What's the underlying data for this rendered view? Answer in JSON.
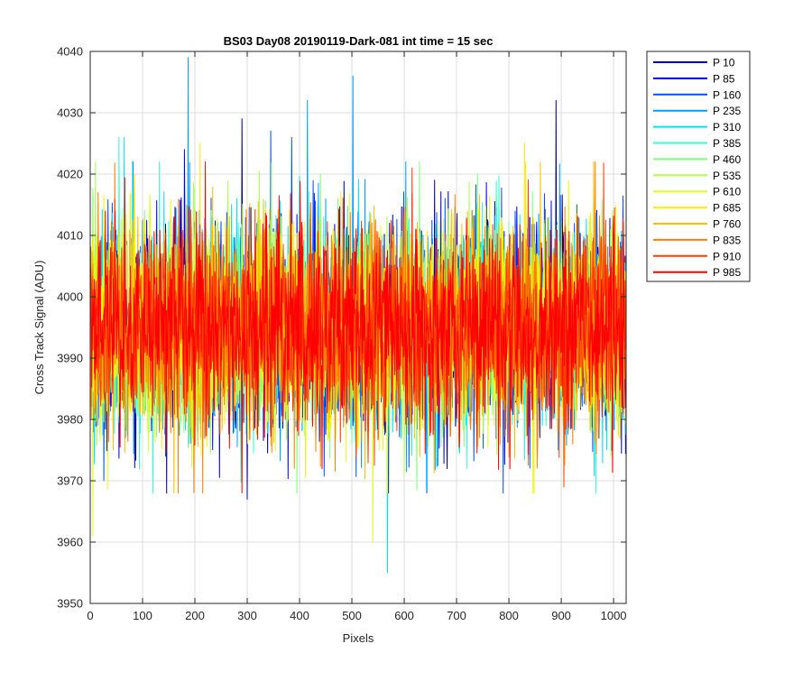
{
  "chart_data": {
    "type": "line",
    "title": "BS03 Day08 20190119-Dark-081 int time = 15 sec",
    "xlabel": "Pixels",
    "ylabel": "Cross Track Signal (ADU)",
    "xlim": [
      0,
      1024
    ],
    "ylim": [
      3950,
      4040
    ],
    "xticks": [
      0,
      100,
      200,
      300,
      400,
      500,
      600,
      700,
      800,
      900,
      1000
    ],
    "yticks": [
      3950,
      3960,
      3970,
      3980,
      3990,
      4000,
      4010,
      4020,
      4030,
      4040
    ],
    "grid": true,
    "legend_position": "outside-top-right",
    "signal_summary": {
      "typical_mean_adu": 3995,
      "typical_range_adu": [
        3978,
        4012
      ]
    },
    "series": [
      {
        "name": "P 10",
        "color": "#00008f",
        "spikes": [
          {
            "x": 290,
            "y": 4029
          },
          {
            "x": 570,
            "y": 3968
          },
          {
            "x": 890,
            "y": 4032
          }
        ]
      },
      {
        "name": "P 85",
        "color": "#0000ef",
        "spikes": [
          {
            "x": 180,
            "y": 4024
          },
          {
            "x": 300,
            "y": 3967
          }
        ]
      },
      {
        "name": "P 160",
        "color": "#0050ff",
        "spikes": [
          {
            "x": 345,
            "y": 4027
          },
          {
            "x": 385,
            "y": 4026
          }
        ]
      },
      {
        "name": "P 235",
        "color": "#009fff",
        "spikes": [
          {
            "x": 187,
            "y": 4039
          },
          {
            "x": 502,
            "y": 4036
          },
          {
            "x": 415,
            "y": 4032
          }
        ]
      },
      {
        "name": "P 310",
        "color": "#00dfff",
        "spikes": [
          {
            "x": 568,
            "y": 3955
          },
          {
            "x": 65,
            "y": 4026
          }
        ]
      },
      {
        "name": "P 385",
        "color": "#2fffcf",
        "spikes": [
          {
            "x": 55,
            "y": 4026
          },
          {
            "x": 720,
            "y": 3972
          }
        ]
      },
      {
        "name": "P 460",
        "color": "#7fff7f",
        "spikes": [
          {
            "x": 440,
            "y": 4020
          }
        ]
      },
      {
        "name": "P 535",
        "color": "#afff4f",
        "spikes": [
          {
            "x": 10,
            "y": 4022
          },
          {
            "x": 600,
            "y": 3971
          }
        ]
      },
      {
        "name": "P 610",
        "color": "#dfff1f",
        "spikes": [
          {
            "x": 540,
            "y": 3960
          },
          {
            "x": 5,
            "y": 3961
          }
        ]
      },
      {
        "name": "P 685",
        "color": "#ffef00",
        "spikes": [
          {
            "x": 210,
            "y": 4025
          },
          {
            "x": 830,
            "y": 4025
          }
        ]
      },
      {
        "name": "P 760",
        "color": "#ffbf00",
        "spikes": [
          {
            "x": 160,
            "y": 3968
          },
          {
            "x": 962,
            "y": 4022
          }
        ]
      },
      {
        "name": "P 835",
        "color": "#ff7f00",
        "spikes": [
          {
            "x": 390,
            "y": 3972
          },
          {
            "x": 965,
            "y": 4022
          }
        ]
      },
      {
        "name": "P 910",
        "color": "#ff3f00",
        "spikes": [
          {
            "x": 615,
            "y": 4021
          },
          {
            "x": 905,
            "y": 3969
          }
        ]
      },
      {
        "name": "P 985",
        "color": "#ff0000",
        "spikes": [
          {
            "x": 290,
            "y": 3968
          },
          {
            "x": 220,
            "y": 4022
          }
        ]
      }
    ]
  }
}
